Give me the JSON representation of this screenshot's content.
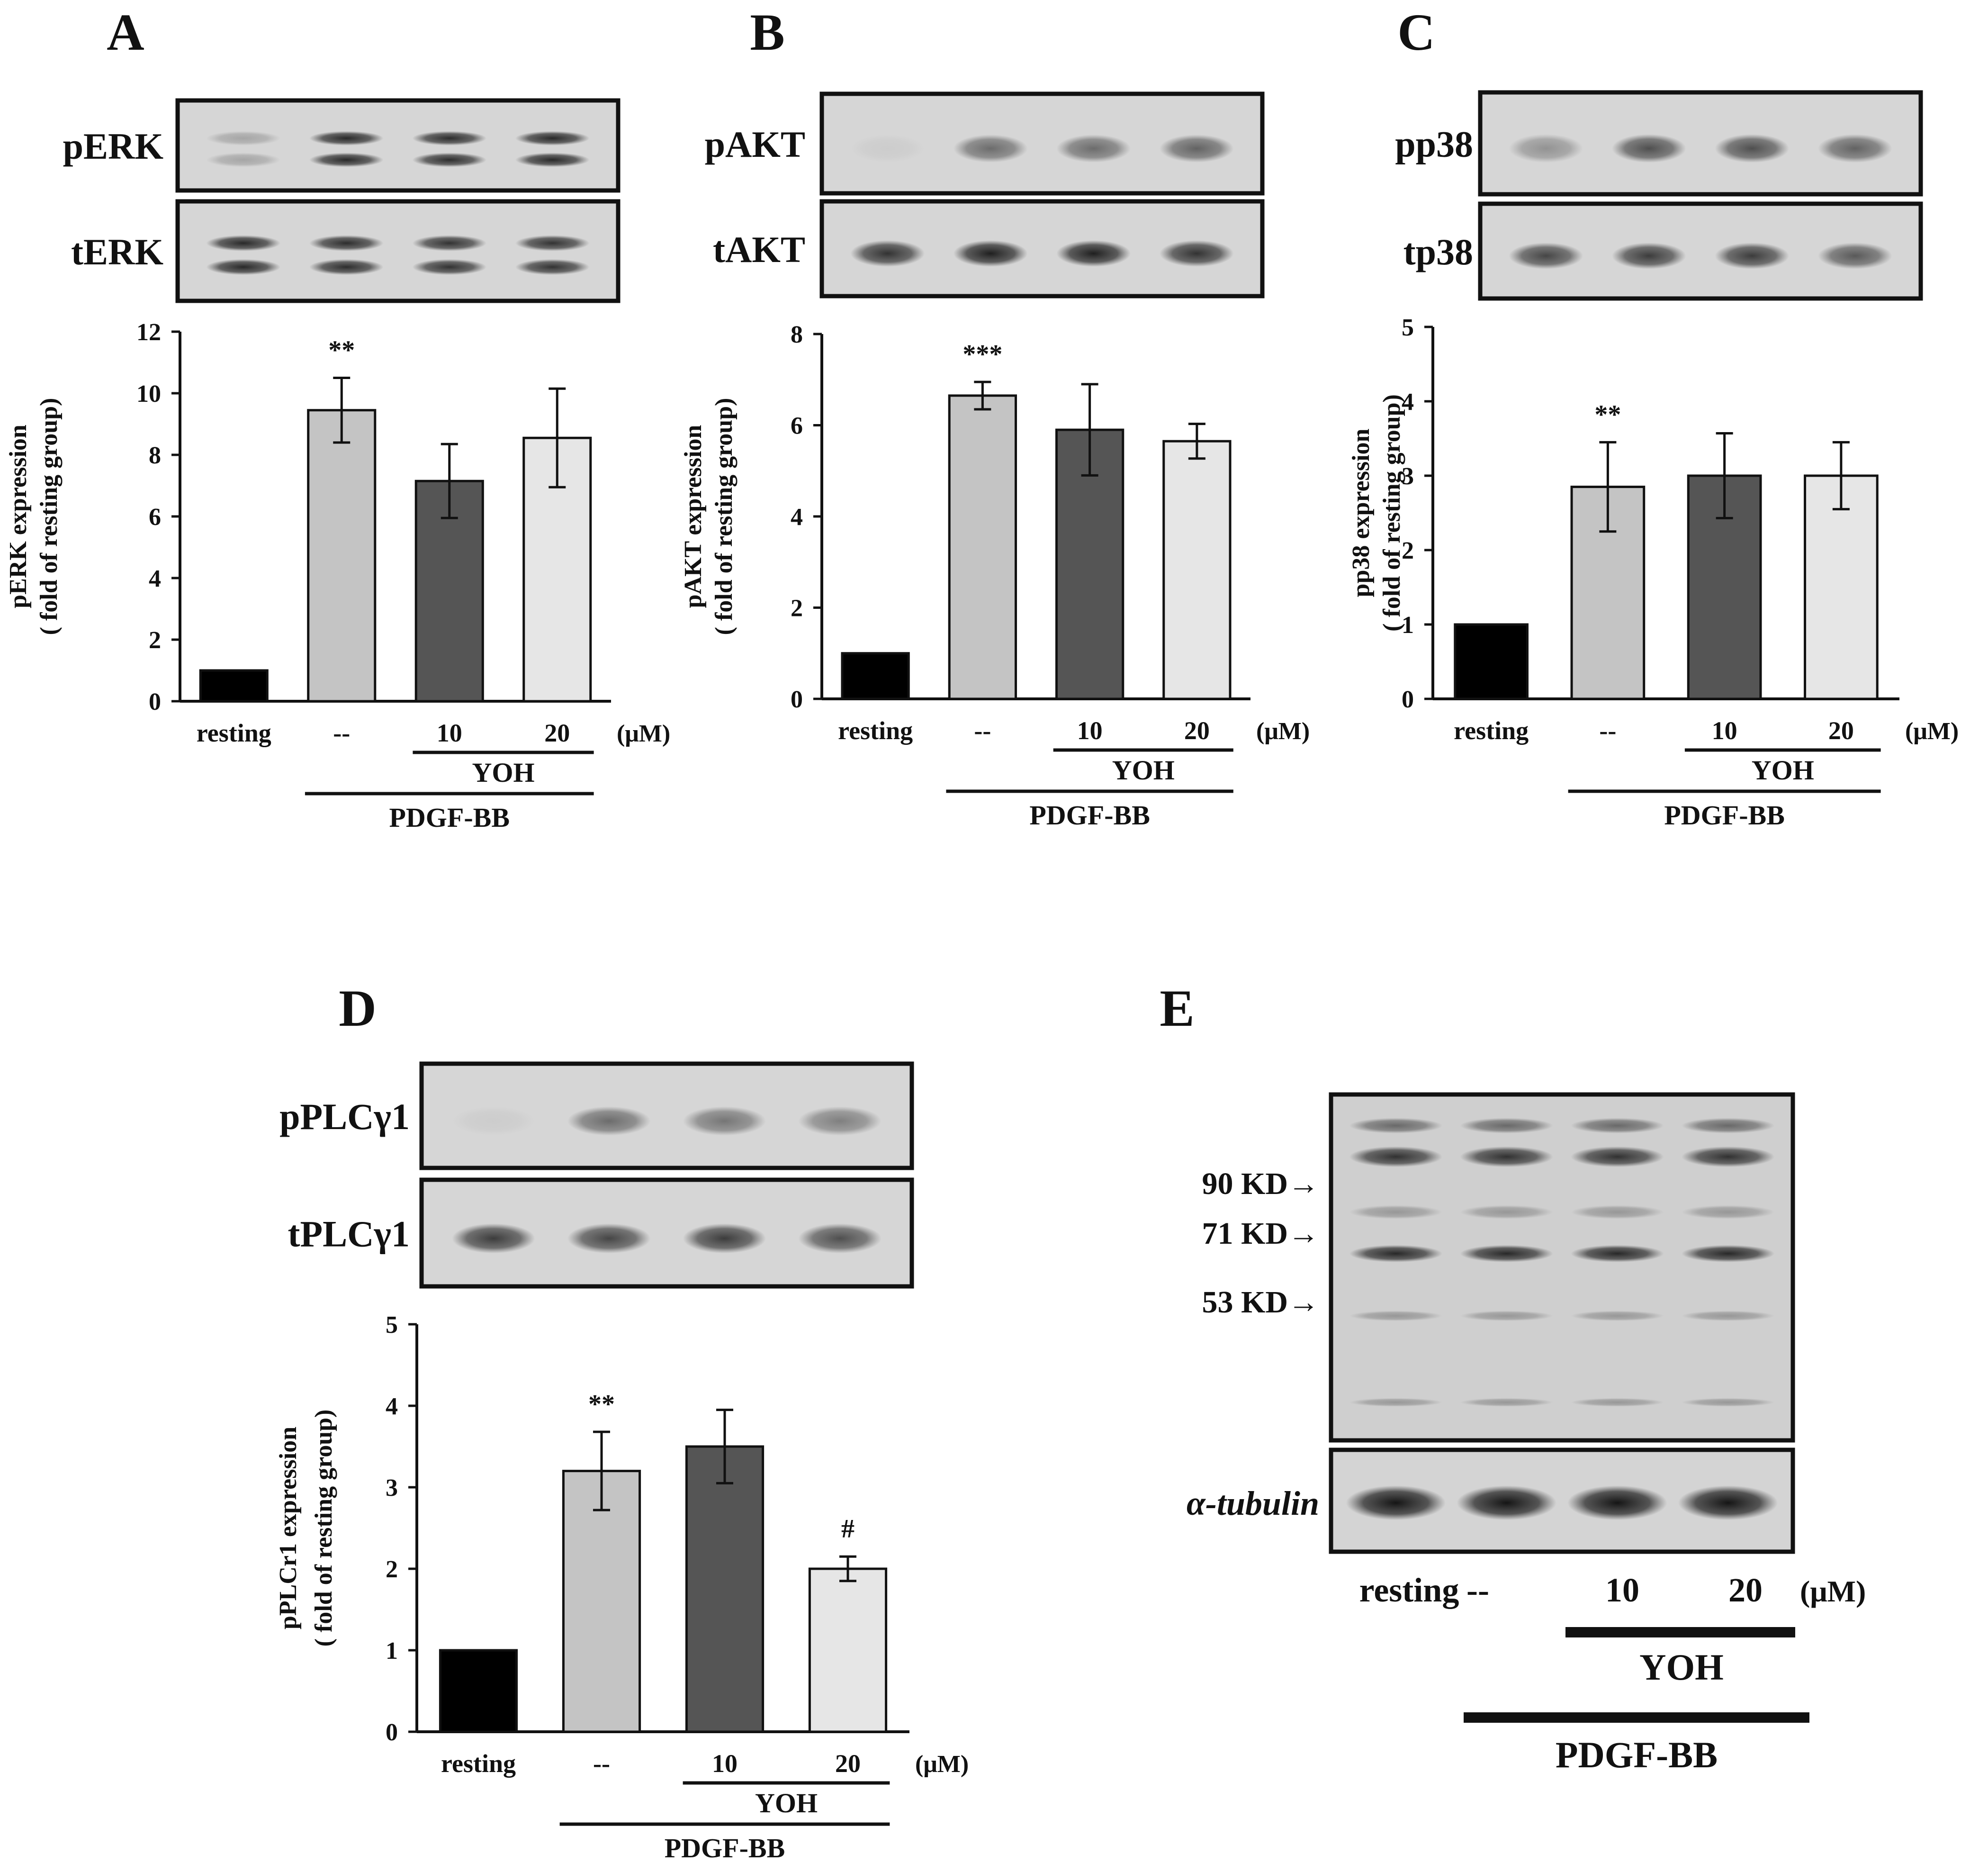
{
  "common": {
    "unit": "(μM)",
    "inhibitor": "YOH",
    "stimulus": "PDGF-BB"
  },
  "panels": [
    {
      "id": "A",
      "letter": "A",
      "blots": [
        {
          "label": "pERK",
          "lanes": [
            0.25,
            0.9,
            0.88,
            0.9
          ],
          "bands": 2
        },
        {
          "label": "tERK",
          "lanes": [
            0.9,
            0.88,
            0.85,
            0.85
          ],
          "bands": 2
        }
      ]
    },
    {
      "id": "B",
      "letter": "B",
      "blots": [
        {
          "label": "pAKT",
          "lanes": [
            0.05,
            0.55,
            0.55,
            0.6
          ],
          "bands": 1
        },
        {
          "label": "tAKT",
          "lanes": [
            0.85,
            0.95,
            0.95,
            0.85
          ],
          "bands": 1
        }
      ]
    },
    {
      "id": "C",
      "letter": "C",
      "blots": [
        {
          "label": "pp38",
          "lanes": [
            0.35,
            0.7,
            0.7,
            0.6
          ],
          "bands": 1
        },
        {
          "label": "tp38",
          "lanes": [
            0.75,
            0.8,
            0.8,
            0.65
          ],
          "bands": 1
        }
      ]
    },
    {
      "id": "D",
      "letter": "D",
      "blots": [
        {
          "label": "pPLCγ1",
          "lanes": [
            0.05,
            0.55,
            0.5,
            0.45
          ],
          "bands": 1
        },
        {
          "label": "tPLCγ1",
          "lanes": [
            0.8,
            0.75,
            0.8,
            0.7
          ],
          "bands": 1
        }
      ]
    },
    {
      "id": "E",
      "letter": "E",
      "markers": [
        "90 KD→",
        "71 KD→",
        "53 KD→"
      ],
      "loading_label": "α-tubulin",
      "lanes": [
        "resting",
        "--",
        "10",
        "20"
      ]
    }
  ],
  "chart_data": [
    {
      "panel": "A",
      "type": "bar",
      "categories": [
        "resting",
        "--",
        "10",
        "20"
      ],
      "values": [
        1.0,
        9.45,
        7.15,
        8.55
      ],
      "errors": [
        0,
        1.05,
        1.2,
        1.6
      ],
      "annotations": [
        "",
        "**",
        "",
        ""
      ],
      "ylabel": "pERK expression",
      "ylabel2": "( fold of resting group)",
      "ylim": [
        0,
        12
      ],
      "yticks": [
        "0",
        "2",
        "4",
        "6",
        "8",
        "10",
        "12"
      ],
      "colors": [
        "#000000",
        "#c4c4c4",
        "#555555",
        "#e6e6e6"
      ]
    },
    {
      "panel": "B",
      "type": "bar",
      "categories": [
        "resting",
        "--",
        "10",
        "20"
      ],
      "values": [
        1.0,
        6.65,
        5.9,
        5.65
      ],
      "errors": [
        0,
        0.3,
        1.0,
        0.38
      ],
      "annotations": [
        "",
        "***",
        "",
        ""
      ],
      "ylabel": "pAKT expression",
      "ylabel2": "( fold of resting group)",
      "ylim": [
        0,
        8
      ],
      "yticks": [
        "0",
        "2",
        "4",
        "6",
        "8"
      ],
      "colors": [
        "#000000",
        "#c4c4c4",
        "#555555",
        "#e6e6e6"
      ]
    },
    {
      "panel": "C",
      "type": "bar",
      "categories": [
        "resting",
        "--",
        "10",
        "20"
      ],
      "values": [
        1.0,
        2.85,
        3.0,
        3.0
      ],
      "errors": [
        0,
        0.6,
        0.57,
        0.45
      ],
      "annotations": [
        "",
        "**",
        "",
        ""
      ],
      "ylabel": "pp38 expression",
      "ylabel2": "( fold of resting group)",
      "ylim": [
        0,
        5
      ],
      "yticks": [
        "0",
        "1",
        "2",
        "3",
        "4",
        "5"
      ],
      "colors": [
        "#000000",
        "#c4c4c4",
        "#555555",
        "#e6e6e6"
      ]
    },
    {
      "panel": "D",
      "type": "bar",
      "categories": [
        "resting",
        "--",
        "10",
        "20"
      ],
      "values": [
        1.0,
        3.2,
        3.5,
        2.0
      ],
      "errors": [
        0,
        0.48,
        0.45,
        0.15
      ],
      "annotations": [
        "",
        "**",
        "",
        "#"
      ],
      "ylabel": "pPLCr1 expression",
      "ylabel2": "( fold of resting group)",
      "ylim": [
        0,
        5
      ],
      "yticks": [
        "0",
        "1",
        "2",
        "3",
        "4",
        "5"
      ],
      "colors": [
        "#000000",
        "#c4c4c4",
        "#555555",
        "#e6e6e6"
      ]
    }
  ]
}
